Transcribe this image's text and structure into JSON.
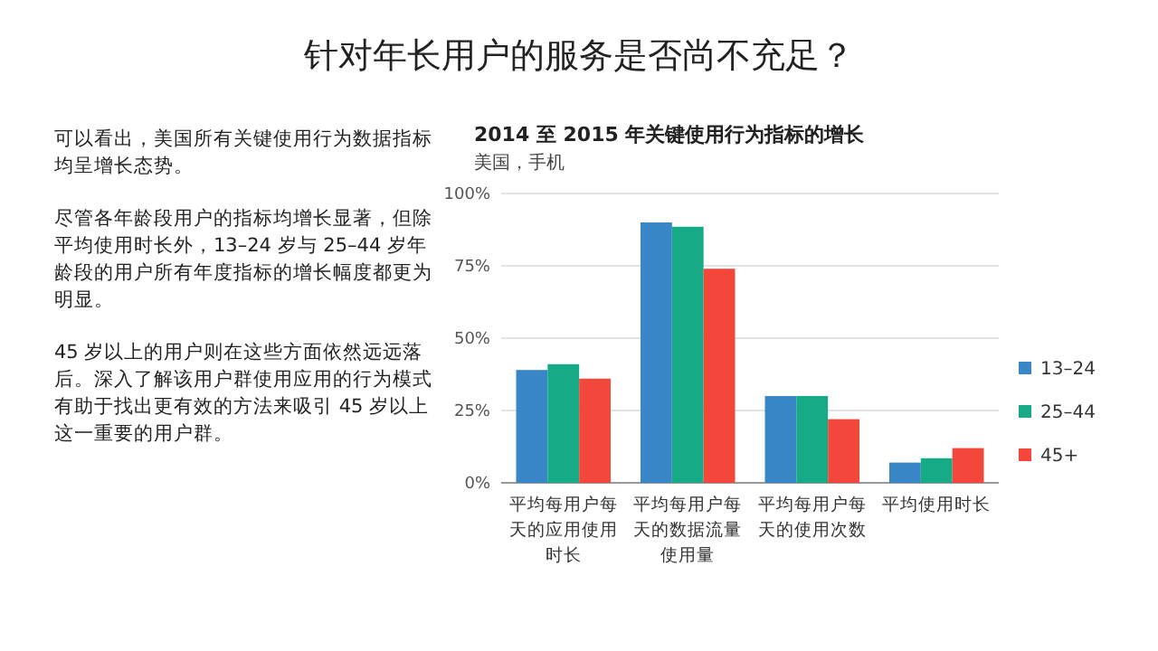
{
  "chart_data": {
    "type": "bar",
    "title": "2014 至 2015 年关键使用行为指标的增长",
    "subtitle": "美国，手机",
    "annotations": [
      "针对年长用户的服务是否尚不充足？",
      "可以看出，美国所有关键使用行为数据指标均呈增长态势。",
      "尽管各年龄段用户的指标均增长显著，但除平均使用时长外，13–24 岁与 25–44 岁年龄段的用户所有年度指标的增长幅度都更为明显。",
      "45 岁以上的用户则在这些方面依然远远落后。深入了解该用户群使用应用的行为模式有助于找出更有效的方法来吸引 45 岁以上这一重要的用户群。"
    ],
    "categories": [
      "平均每用户每天的应用使用时长",
      "平均每用户每天的数据流量使用量",
      "平均每用户每天的使用次数",
      "平均使用时长"
    ],
    "series": [
      {
        "name": "13–24",
        "color": "#3a87c8",
        "values": [
          39,
          90,
          30,
          7
        ]
      },
      {
        "name": "25–44",
        "color": "#17aa86",
        "values": [
          41,
          88.5,
          30,
          8.5
        ]
      },
      {
        "name": "45+",
        "color": "#f2473a",
        "values": [
          36,
          74,
          22,
          12
        ]
      }
    ],
    "ylim": [
      0,
      100
    ],
    "yticks": [
      {
        "value": 0,
        "label": "0%"
      },
      {
        "value": 25,
        "label": "25%"
      },
      {
        "value": 50,
        "label": "50%"
      },
      {
        "value": 75,
        "label": "75%"
      },
      {
        "value": 100,
        "label": "100%"
      }
    ],
    "grid": "y",
    "legend": "right"
  }
}
